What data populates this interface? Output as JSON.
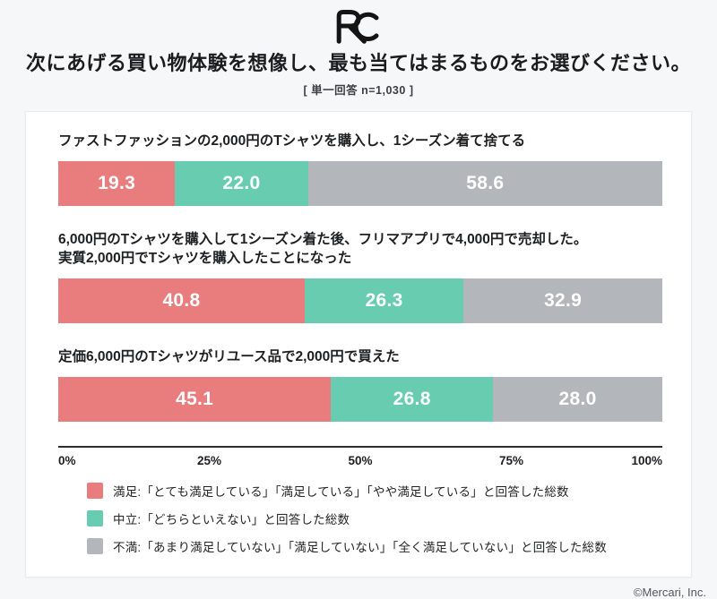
{
  "header": {
    "logo_name": "rc-monogram-logo",
    "title": "次にあげる買い物体験を想像し、最も当てはまるものをお選びください。",
    "subtitle": "[ 単一回答 n=1,030 ]"
  },
  "colors": {
    "satisfied": "#E97C7C",
    "neutral": "#68CCB1",
    "dissatisfied": "#B3B7BB",
    "background": "#F6F7F9",
    "card": "#FFFFFF"
  },
  "chart_data": {
    "type": "bar",
    "orientation": "horizontal-stacked",
    "unit": "%",
    "xlim": [
      0,
      100
    ],
    "x_ticks": [
      "0%",
      "25%",
      "50%",
      "75%",
      "100%"
    ],
    "grid": false,
    "legend_position": "bottom",
    "series_names": [
      "満足",
      "中立",
      "不満"
    ],
    "series_colors": [
      "#E97C7C",
      "#68CCB1",
      "#B3B7BB"
    ],
    "rows": [
      {
        "label": "ファストファッションの2,000円のTシャツを購入し、1シーズン着て捨てる",
        "values": [
          19.3,
          22.0,
          58.6
        ]
      },
      {
        "label": "6,000円のTシャツを購入して1シーズン着た後、フリマアプリで4,000円で売却した。\n実質2,000円でTシャツを購入したことになった",
        "values": [
          40.8,
          26.3,
          32.9
        ]
      },
      {
        "label": "定価6,000円のTシャツがリユース品で2,000円で買えた",
        "values": [
          45.1,
          26.8,
          28.0
        ]
      }
    ],
    "legend": [
      {
        "label": "満足:「とても満足している」「満足している」「やや満足している」と回答した総数",
        "color": "#E97C7C"
      },
      {
        "label": "中立:「どちらといえない」と回答した総数",
        "color": "#68CCB1"
      },
      {
        "label": "不満:「あまり満足していない」「満足していない」「全く満足していない」と回答した総数",
        "color": "#B3B7BB"
      }
    ]
  },
  "footer": {
    "copyright": "©Mercari, Inc."
  }
}
